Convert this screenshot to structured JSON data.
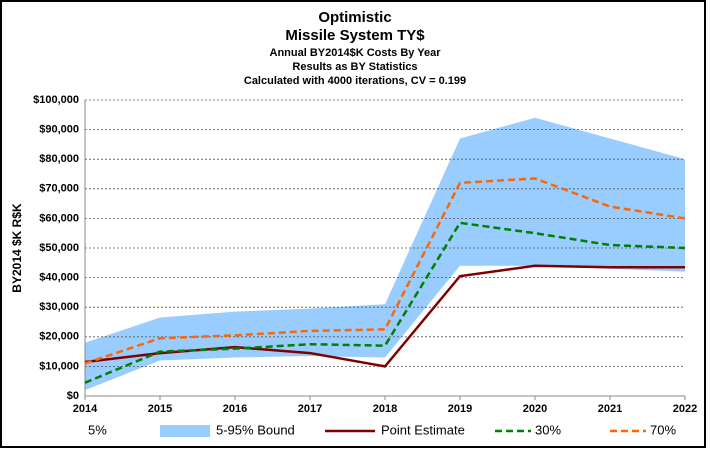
{
  "chart_data": {
    "type": "line",
    "title": "Optimistic",
    "subtitle": "Missile System TY$",
    "subtitles": [
      "Annual BY2014$K Costs By Year",
      "Results as BY Statistics",
      "Calculated with 4000 iterations, CV = 0.199"
    ],
    "y_label": "BY2014 $K R$K",
    "x": [
      2014,
      2015,
      2016,
      2017,
      2018,
      2019,
      2020,
      2021,
      2022
    ],
    "xlim": [
      2014,
      2022
    ],
    "xticks": [
      2014,
      2015,
      2016,
      2017,
      2018,
      2019,
      2020,
      2021,
      2022
    ],
    "ylim": [
      0,
      100000
    ],
    "yticks": [
      {
        "value": 0,
        "label": "$0"
      },
      {
        "value": 10000,
        "label": "$10,000"
      },
      {
        "value": 20000,
        "label": "$20,000"
      },
      {
        "value": 30000,
        "label": "$30,000"
      },
      {
        "value": 40000,
        "label": "$40,000"
      },
      {
        "value": 50000,
        "label": "$50,000"
      },
      {
        "value": 60000,
        "label": "$60,000"
      },
      {
        "value": 70000,
        "label": "$70,000"
      },
      {
        "value": 80000,
        "label": "$80,000"
      },
      {
        "value": 90000,
        "label": "$90,000"
      },
      {
        "value": 100000,
        "label": "$100,000"
      }
    ],
    "grid": true,
    "legend": "bottom",
    "series": [
      {
        "name": "5%",
        "type": "stacked-area",
        "color": "none",
        "values": [
          2000,
          12000,
          13000,
          13500,
          13000,
          44000,
          44000,
          43000,
          42000
        ]
      },
      {
        "name": "5-95% Bound",
        "type": "stacked-area",
        "color": "#99ccff",
        "values": [
          16000,
          14500,
          15500,
          16000,
          18000,
          43000,
          50000,
          44000,
          38000
        ]
      },
      {
        "name": "Point Estimate",
        "type": "line",
        "dashed": false,
        "color": "#800000",
        "values": [
          11500,
          14500,
          16500,
          14500,
          10000,
          40500,
          44000,
          43500,
          43500
        ]
      },
      {
        "name": "30%",
        "type": "line",
        "dashed": true,
        "color": "#008000",
        "values": [
          4500,
          15000,
          16000,
          17500,
          17000,
          58500,
          55000,
          51000,
          50000
        ]
      },
      {
        "name": "70%",
        "type": "line",
        "dashed": true,
        "color": "#ff6600",
        "values": [
          11000,
          19500,
          20500,
          22000,
          22500,
          72000,
          73500,
          64000,
          60000
        ]
      }
    ]
  }
}
